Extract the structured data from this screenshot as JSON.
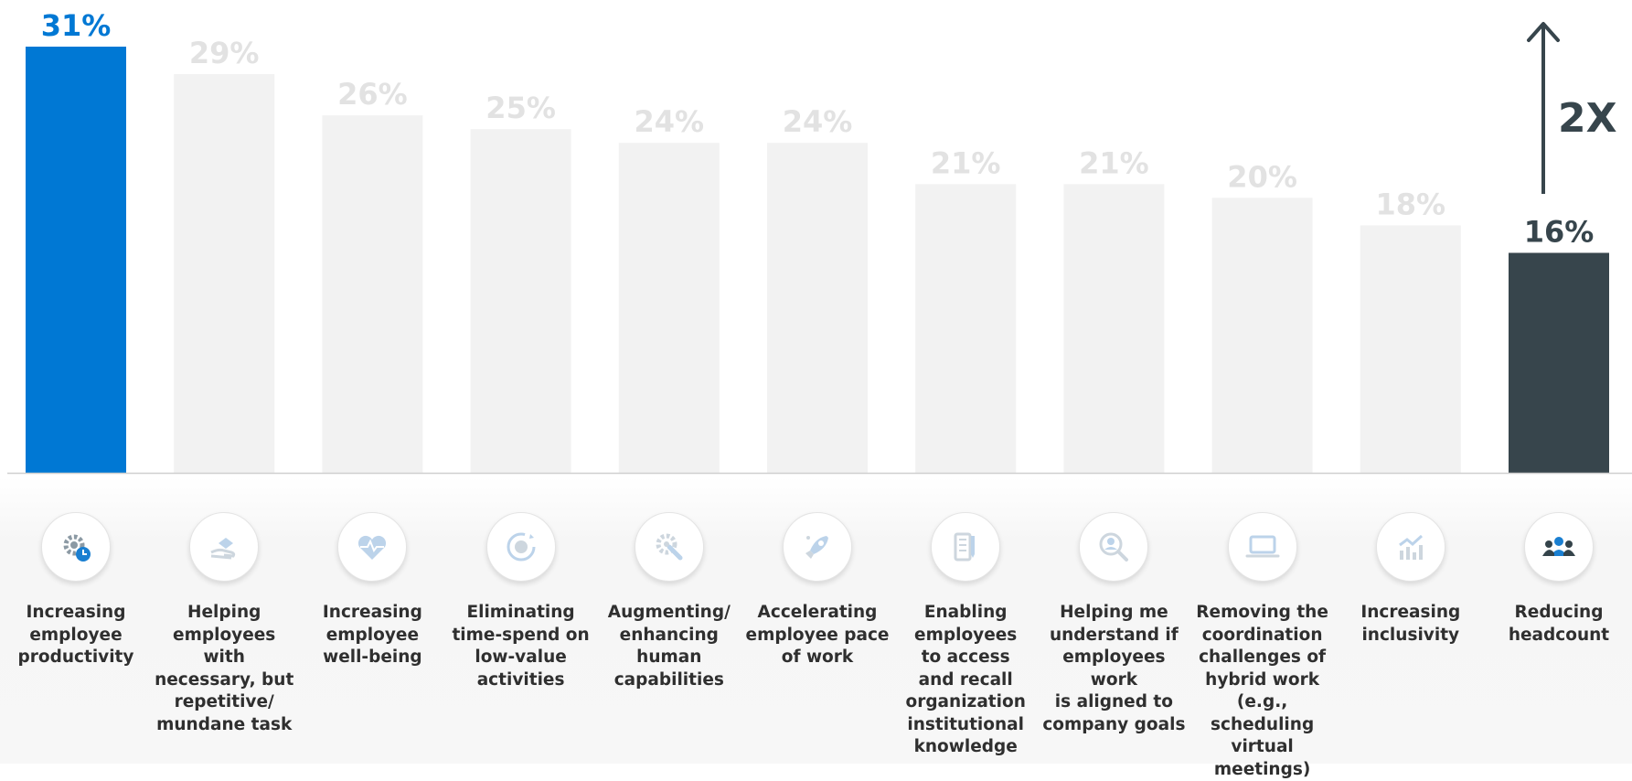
{
  "chart_data": {
    "type": "bar",
    "ylim": [
      0,
      31
    ],
    "categories": [
      "Increasing\nemployee\nproductivity",
      "Helping\nemployees with\nnecessary, but\nrepetitive/\nmundane task",
      "Increasing\nemployee\nwell-being",
      "Eliminating\ntime-spend on\nlow-value\nactivities",
      "Augmenting/\nenhancing\nhuman\ncapabilities",
      "Accelerating\nemployee pace\nof work",
      "Enabling\nemployees\nto access\nand recall\norganization\ninstitutional\nknowledge",
      "Helping me\nunderstand if\nemployees work\nis aligned to\ncompany goals",
      "Removing the\ncoordination\nchallenges of\nhybrid work\n(e.g., scheduling\nvirtual\nmeetings)",
      "Increasing\ninclusivity",
      "Reducing\nheadcount"
    ],
    "values": [
      31,
      29,
      26,
      25,
      24,
      24,
      21,
      21,
      20,
      18,
      16
    ],
    "value_labels": [
      "31%",
      "29%",
      "26%",
      "25%",
      "24%",
      "24%",
      "21%",
      "21%",
      "20%",
      "18%",
      "16%"
    ],
    "bar_colors": [
      "#0078d4",
      "#f2f2f2",
      "#f2f2f2",
      "#f2f2f2",
      "#f2f2f2",
      "#f2f2f2",
      "#f2f2f2",
      "#f2f2f2",
      "#f2f2f2",
      "#f2f2f2",
      "#37454c"
    ],
    "label_colors": [
      "#0078d4",
      "#e2e2e2",
      "#e2e2e2",
      "#e2e2e2",
      "#e2e2e2",
      "#e2e2e2",
      "#e2e2e2",
      "#e2e2e2",
      "#e2e2e2",
      "#e2e2e2",
      "#37454c"
    ],
    "icons": [
      "gear-clock-icon",
      "hand-helping-icon",
      "heart-pulse-icon",
      "cycle-gear-icon",
      "gear-wrench-icon",
      "rocket-icon",
      "notebook-pen-icon",
      "person-search-icon",
      "laptop-icon",
      "bar-chart-trend-icon",
      "people-group-icon"
    ],
    "annotation": {
      "text": "2X"
    }
  }
}
